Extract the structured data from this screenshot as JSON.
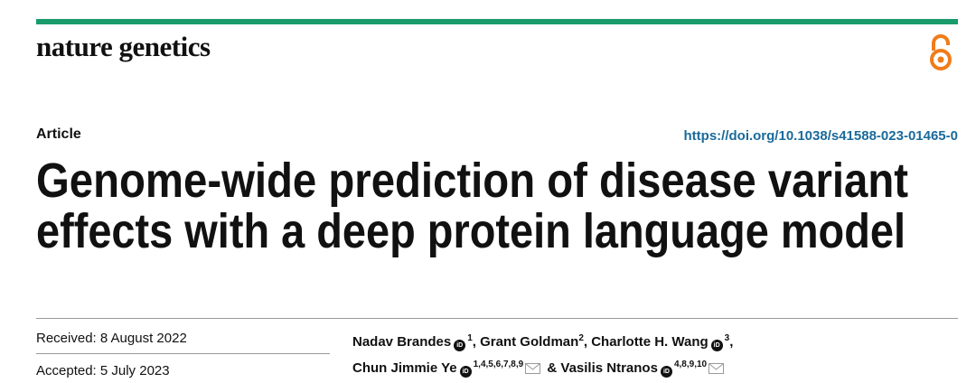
{
  "header": {
    "journal": "nature genetics",
    "article_type": "Article",
    "doi": "https://doi.org/10.1038/s41588-023-01465-0"
  },
  "title": {
    "lines": [
      "Genome-wide prediction of disease variant",
      "effects with a deep protein language model"
    ]
  },
  "dates": {
    "received": "Received: 8 August 2022",
    "accepted": "Accepted: 5 July 2023"
  },
  "authors": [
    {
      "name": "Nadav Brandes",
      "orcid": true,
      "affiliations": "1",
      "corresponding": false,
      "suffix": ","
    },
    {
      "name": "Grant Goldman",
      "orcid": false,
      "affiliations": "2",
      "corresponding": false,
      "suffix": ","
    },
    {
      "name": "Charlotte H. Wang",
      "orcid": true,
      "affiliations": "3",
      "corresponding": false,
      "suffix": ","
    },
    {
      "name": "Chun Jimmie Ye",
      "orcid": true,
      "affiliations": "1,4,5,6,7,8,9",
      "corresponding": true,
      "suffix": ""
    },
    {
      "name": "& Vasilis Ntranos",
      "orcid": true,
      "affiliations": "4,8,9,10",
      "corresponding": true,
      "suffix": ""
    }
  ]
}
